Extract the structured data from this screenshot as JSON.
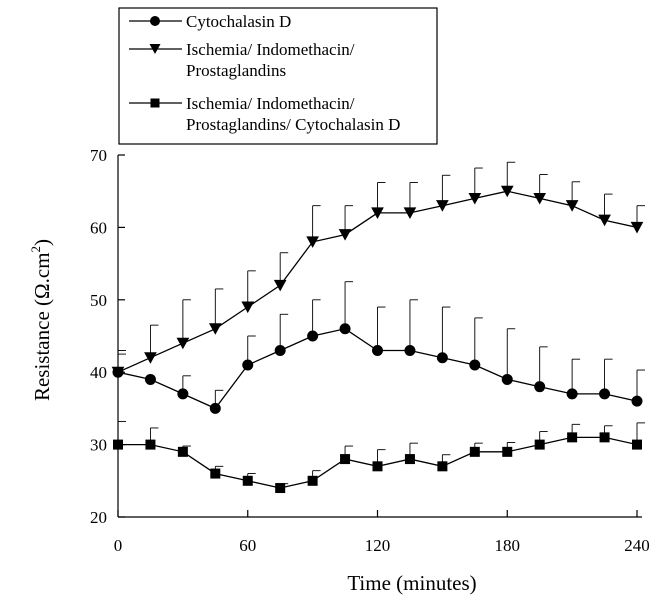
{
  "chart_data": {
    "type": "line",
    "title": "",
    "xlabel": "Time (minutes)",
    "ylabel": "Resistance (Ω.cm",
    "ylabel_superscript": "2",
    "ylabel_close": ")",
    "xlim": [
      0,
      240
    ],
    "ylim": [
      20,
      70
    ],
    "x_ticks": [
      0,
      60,
      120,
      180,
      240
    ],
    "y_ticks": [
      20,
      30,
      40,
      50,
      60,
      70
    ],
    "grid": false,
    "legend_position": "top-left",
    "x": [
      0,
      15,
      30,
      45,
      60,
      75,
      90,
      105,
      120,
      135,
      150,
      165,
      180,
      195,
      210,
      225,
      240
    ],
    "series": [
      {
        "name": "Cytochalasin D",
        "marker": "circle",
        "values": [
          40,
          39,
          37,
          35,
          41,
          43,
          45,
          46,
          43,
          43,
          42,
          41,
          39,
          38,
          37,
          37,
          36
        ],
        "error": [
          2.5,
          0,
          2.5,
          2.5,
          4,
          5,
          5,
          6.5,
          6,
          7,
          7,
          6.5,
          7,
          5.5,
          4.8,
          4.8,
          4.3
        ]
      },
      {
        "name": "Ischemia/ Indomethacin/ Prostaglandins",
        "name_lines": [
          "Ischemia/ Indomethacin/",
          "Prostaglandins"
        ],
        "marker": "triangle-down",
        "values": [
          40,
          42,
          44,
          46,
          49,
          52,
          58,
          59,
          62,
          62,
          63,
          64,
          65,
          64,
          63,
          61,
          60
        ],
        "error": [
          3,
          4.5,
          6,
          5.5,
          5,
          4.5,
          5,
          4,
          4.2,
          4.2,
          4.2,
          4.2,
          4,
          3.3,
          3.3,
          3.6,
          3
        ]
      },
      {
        "name": "Ischemia/ Indomethacin/ Prostaglandins/ Cytochalasin D",
        "name_lines": [
          "Ischemia/ Indomethacin/",
          "Prostaglandins/ Cytochalasin D"
        ],
        "marker": "square",
        "values": [
          30,
          30,
          29,
          26,
          25,
          24,
          25,
          28,
          27,
          28,
          27,
          29,
          29,
          30,
          31,
          31,
          30
        ],
        "error": [
          3.2,
          2.3,
          0.8,
          1,
          1,
          0.6,
          1.4,
          1.8,
          2.3,
          2.2,
          1.6,
          1.2,
          1.3,
          1.8,
          1.8,
          1.6,
          3
        ]
      }
    ]
  }
}
